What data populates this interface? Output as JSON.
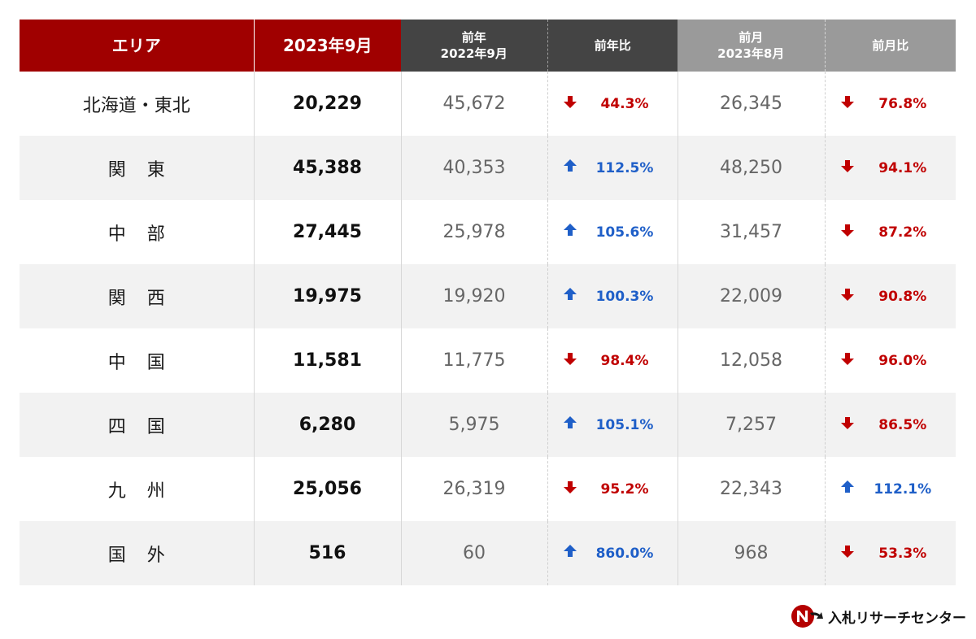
{
  "header": {
    "area": "エリア",
    "current": "2023年9月",
    "prev_year_line1": "前年",
    "prev_year_line2": "2022年9月",
    "yoy": "前年比",
    "prev_month_line1": "前月",
    "prev_month_line2": "2023年8月",
    "mom": "前月比"
  },
  "colors": {
    "header_red": "#a00000",
    "header_dark": "#444444",
    "header_gray": "#9a9a9a",
    "down": "#c00000",
    "up": "#1f5fc8"
  },
  "rows": [
    {
      "area": "北海道・東北",
      "spaced": false,
      "current": "20,229",
      "prev_year": "45,672",
      "yoy": "44.3%",
      "yoy_dir": "down",
      "prev_month": "26,345",
      "mom": "76.8%",
      "mom_dir": "down"
    },
    {
      "area": "関東",
      "spaced": true,
      "current": "45,388",
      "prev_year": "40,353",
      "yoy": "112.5%",
      "yoy_dir": "up",
      "prev_month": "48,250",
      "mom": "94.1%",
      "mom_dir": "down"
    },
    {
      "area": "中部",
      "spaced": true,
      "current": "27,445",
      "prev_year": "25,978",
      "yoy": "105.6%",
      "yoy_dir": "up",
      "prev_month": "31,457",
      "mom": "87.2%",
      "mom_dir": "down"
    },
    {
      "area": "関西",
      "spaced": true,
      "current": "19,975",
      "prev_year": "19,920",
      "yoy": "100.3%",
      "yoy_dir": "up",
      "prev_month": "22,009",
      "mom": "90.8%",
      "mom_dir": "down"
    },
    {
      "area": "中国",
      "spaced": true,
      "current": "11,581",
      "prev_year": "11,775",
      "yoy": "98.4%",
      "yoy_dir": "down",
      "prev_month": "12,058",
      "mom": "96.0%",
      "mom_dir": "down"
    },
    {
      "area": "四国",
      "spaced": true,
      "current": "6,280",
      "prev_year": "5,975",
      "yoy": "105.1%",
      "yoy_dir": "up",
      "prev_month": "7,257",
      "mom": "86.5%",
      "mom_dir": "down"
    },
    {
      "area": "九州",
      "spaced": true,
      "current": "25,056",
      "prev_year": "26,319",
      "yoy": "95.2%",
      "yoy_dir": "down",
      "prev_month": "22,343",
      "mom": "112.1%",
      "mom_dir": "up"
    },
    {
      "area": "国外",
      "spaced": true,
      "current": "516",
      "prev_year": "60",
      "yoy": "860.0%",
      "yoy_dir": "up",
      "prev_month": "968",
      "mom": "53.3%",
      "mom_dir": "down"
    }
  ],
  "logo": {
    "text": "入札リサーチセンター",
    "icon": "nr-logo-icon"
  }
}
